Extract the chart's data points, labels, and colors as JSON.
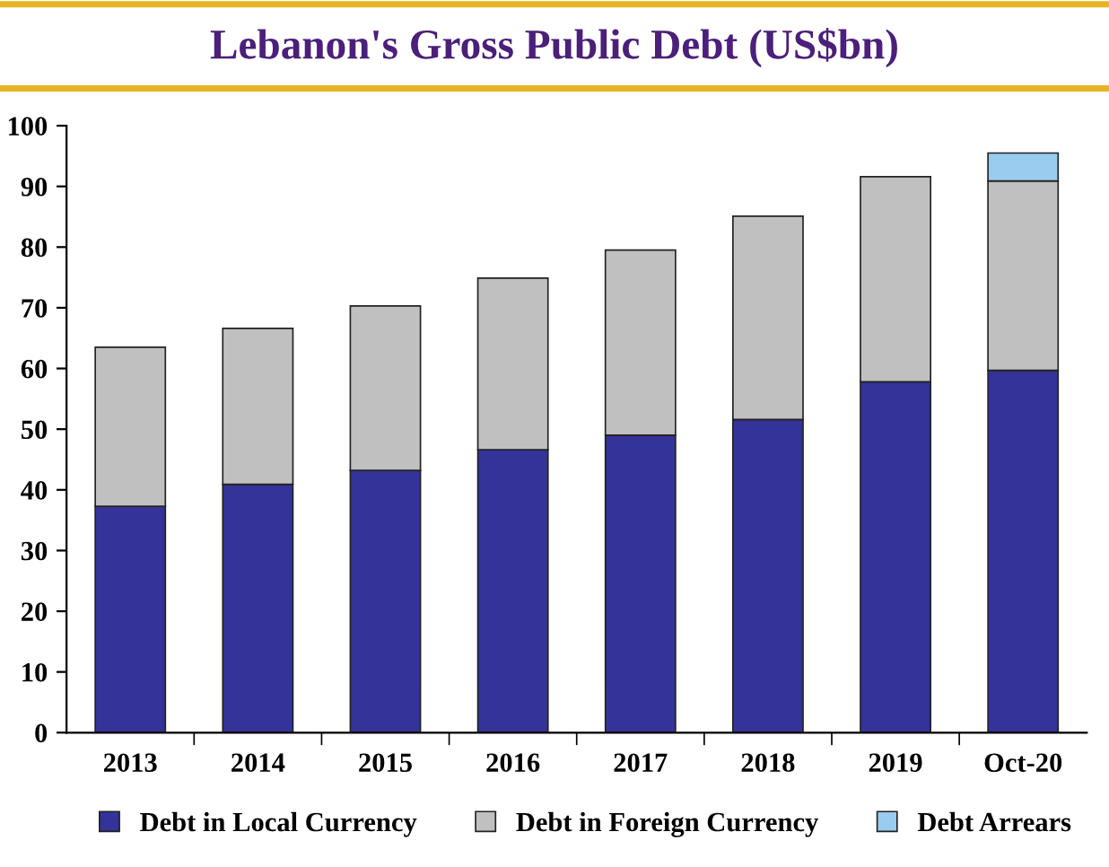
{
  "chart_data": {
    "type": "bar",
    "title": "Lebanon's Gross Public Debt (US$bn)",
    "categories": [
      "2013",
      "2014",
      "2015",
      "2016",
      "2017",
      "2018",
      "2019",
      "Oct-20"
    ],
    "stacked": true,
    "ylim": [
      0,
      100
    ],
    "yticks": [
      0,
      10,
      20,
      30,
      40,
      50,
      60,
      70,
      80,
      90,
      100
    ],
    "grid": false,
    "legend": "bottom",
    "series": [
      {
        "name": "Debt in Local Currency",
        "color": "#333399",
        "values": [
          37.3,
          40.9,
          43.2,
          46.6,
          49.0,
          51.6,
          57.8,
          59.7
        ]
      },
      {
        "name": "Debt in Foreign Currency",
        "color": "#c0c0c0",
        "values": [
          26.2,
          25.7,
          27.1,
          28.3,
          30.5,
          33.5,
          33.8,
          31.2
        ]
      },
      {
        "name": "Debt Arrears",
        "color": "#99ccee",
        "values": [
          null,
          null,
          null,
          null,
          null,
          null,
          null,
          4.6
        ]
      }
    ]
  }
}
